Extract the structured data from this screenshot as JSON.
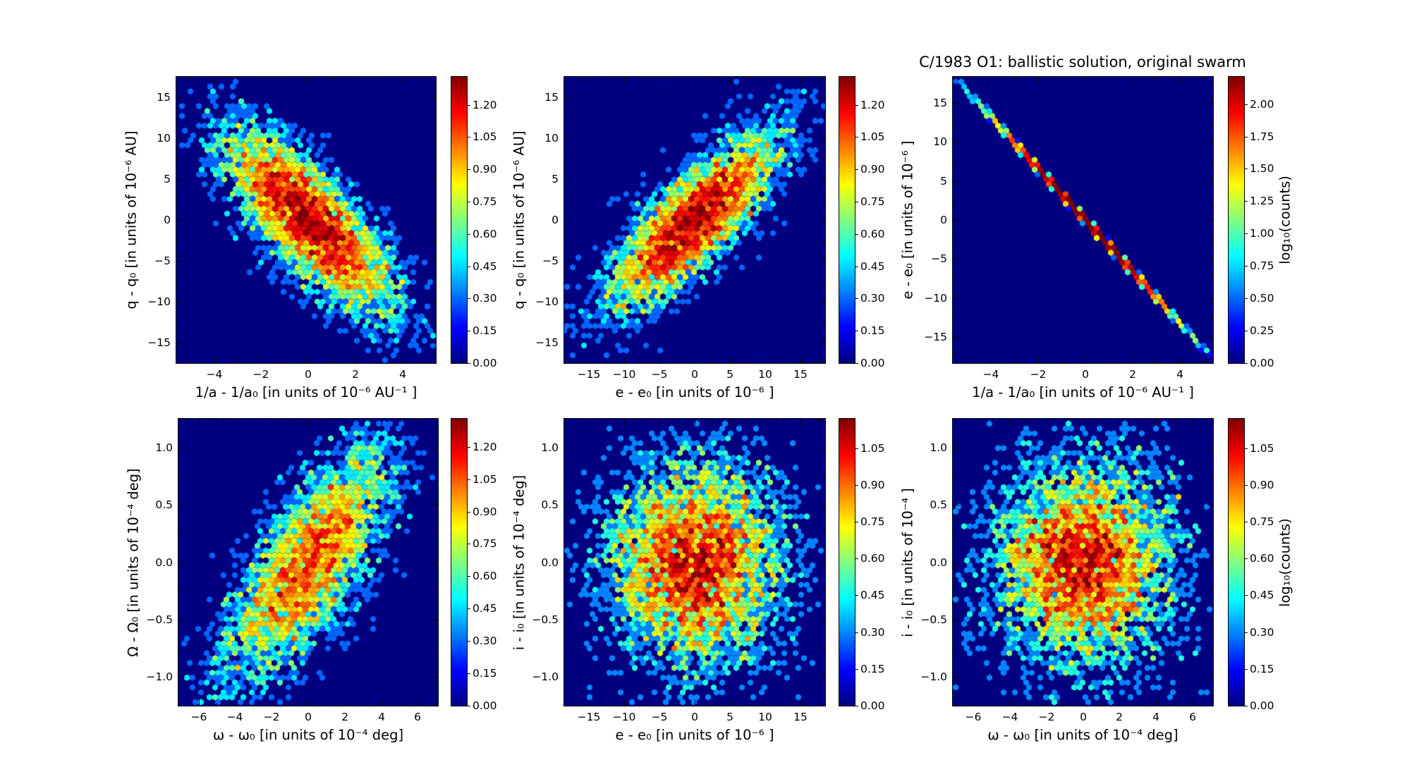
{
  "title": "C/1983 O1:  ballistic solution, original swarm",
  "colorbar_label": "log₁₀(counts)",
  "colors": {
    "figure_background": "#ffffff",
    "plot_background": "#000080",
    "axis_color": "#000000",
    "colormap": "jet"
  },
  "chart_data": [
    {
      "name": "q-vs-inverse-a",
      "type": "hexbin",
      "xlabel": "1/a - 1/a₀ [in units of 10⁻⁶ AU⁻¹ ]",
      "ylabel": "q - q₀ [in units of 10⁻⁶ AU]",
      "xlim": [
        -5.6,
        5.4
      ],
      "ylim": [
        -17.5,
        17.5
      ],
      "xticks": [
        [
          -4,
          "−4"
        ],
        [
          -2,
          "−2"
        ],
        [
          0,
          "0"
        ],
        [
          2,
          "2"
        ],
        [
          4,
          "4"
        ]
      ],
      "yticks": [
        [
          15,
          "15"
        ],
        [
          10,
          "10"
        ],
        [
          5,
          "5"
        ],
        [
          0,
          "0"
        ],
        [
          -5,
          "−5"
        ],
        [
          -10,
          "−10"
        ],
        [
          -15,
          "−15"
        ]
      ],
      "colorbar_ticks": [
        [
          1.2,
          "1.20"
        ],
        [
          1.05,
          "1.05"
        ],
        [
          0.9,
          "0.90"
        ],
        [
          0.75,
          "0.75"
        ],
        [
          0.6,
          "0.60"
        ],
        [
          0.45,
          "0.45"
        ],
        [
          0.3,
          "0.30"
        ],
        [
          0.15,
          "0.15"
        ],
        [
          0.0,
          "0.00"
        ]
      ],
      "vmax": 1.33,
      "colormap": "jet",
      "distribution": {
        "n": 5000,
        "sigma_x": 1.8,
        "slope": -2.4,
        "sigma_y": 3.6,
        "seed": 42,
        "cell": 8,
        "correlation": "negative"
      }
    },
    {
      "name": "q-vs-e",
      "type": "hexbin",
      "xlabel": "e - e₀ [in units of 10⁻⁶ ]",
      "ylabel": "q - q₀ [in units of 10⁻⁶ AU]",
      "xlim": [
        -18.5,
        18.5
      ],
      "ylim": [
        -17.5,
        17.5
      ],
      "xticks": [
        [
          -15,
          "−15"
        ],
        [
          -10,
          "−10"
        ],
        [
          -5,
          "−5"
        ],
        [
          0,
          "0"
        ],
        [
          5,
          "5"
        ],
        [
          10,
          "10"
        ],
        [
          15,
          "15"
        ]
      ],
      "yticks": [
        [
          15,
          "15"
        ],
        [
          10,
          "10"
        ],
        [
          5,
          "5"
        ],
        [
          0,
          "0"
        ],
        [
          -5,
          "−5"
        ],
        [
          -10,
          "−10"
        ],
        [
          -15,
          "−15"
        ]
      ],
      "colorbar_ticks": [
        [
          1.2,
          "1.20"
        ],
        [
          1.05,
          "1.05"
        ],
        [
          0.9,
          "0.90"
        ],
        [
          0.75,
          "0.75"
        ],
        [
          0.6,
          "0.60"
        ],
        [
          0.45,
          "0.45"
        ],
        [
          0.3,
          "0.30"
        ],
        [
          0.15,
          "0.15"
        ],
        [
          0.0,
          "0.00"
        ]
      ],
      "vmax": 1.33,
      "colormap": "jet",
      "distribution": {
        "n": 4500,
        "sigma_x": 6.0,
        "slope": 0.7,
        "sigma_y": 3.2,
        "seed": 7,
        "cell": 8,
        "correlation": "positive"
      }
    },
    {
      "name": "e-vs-inverse-a",
      "type": "hexbin",
      "xlabel": "1/a - 1/a₀ [in units of 10⁻⁶ AU⁻¹ ]",
      "ylabel": "e - e₀ [in units of 10⁻⁶ ]",
      "xlim": [
        -5.6,
        5.4
      ],
      "ylim": [
        -18.3,
        18.3
      ],
      "xticks": [
        [
          -4,
          "−4"
        ],
        [
          -2,
          "−2"
        ],
        [
          0,
          "0"
        ],
        [
          2,
          "2"
        ],
        [
          4,
          "4"
        ]
      ],
      "yticks": [
        [
          15,
          "15"
        ],
        [
          10,
          "10"
        ],
        [
          5,
          "5"
        ],
        [
          0,
          "0"
        ],
        [
          -5,
          "−5"
        ],
        [
          -10,
          "−10"
        ],
        [
          -15,
          "−15"
        ]
      ],
      "colorbar_ticks": [
        [
          2.0,
          "2.00"
        ],
        [
          1.75,
          "1.75"
        ],
        [
          1.5,
          "1.50"
        ],
        [
          1.25,
          "1.25"
        ],
        [
          1.0,
          "1.00"
        ],
        [
          0.75,
          "0.75"
        ],
        [
          0.5,
          "0.50"
        ],
        [
          0.25,
          "0.25"
        ],
        [
          0.0,
          "0.00"
        ]
      ],
      "vmax": 2.21,
      "colormap": "jet",
      "distribution": {
        "n": 7000,
        "sigma_x": 1.75,
        "slope": -3.3,
        "sigma_y": 0.1,
        "seed": 13,
        "cell": 8,
        "correlation": "tight negative line"
      }
    },
    {
      "name": "node-vs-argperi",
      "type": "hexbin",
      "xlabel": "ω - ω₀ [in units of 10⁻⁴ deg]",
      "ylabel": "Ω - Ω₀ [in units of 10⁻⁴ deg]",
      "xlim": [
        -7.1,
        7.1
      ],
      "ylim": [
        -1.25,
        1.25
      ],
      "xticks": [
        [
          -6,
          "−6"
        ],
        [
          -4,
          "−4"
        ],
        [
          -2,
          "−2"
        ],
        [
          0,
          "0"
        ],
        [
          2,
          "2"
        ],
        [
          4,
          "4"
        ],
        [
          6,
          "6"
        ]
      ],
      "yticks": [
        [
          1.0,
          "1.0"
        ],
        [
          0.5,
          "0.5"
        ],
        [
          0.0,
          "0.0"
        ],
        [
          -0.5,
          "−0.5"
        ],
        [
          -1.0,
          "−1.0"
        ]
      ],
      "colorbar_ticks": [
        [
          1.2,
          "1.20"
        ],
        [
          1.05,
          "1.05"
        ],
        [
          0.9,
          "0.90"
        ],
        [
          0.75,
          "0.75"
        ],
        [
          0.6,
          "0.60"
        ],
        [
          0.45,
          "0.45"
        ],
        [
          0.3,
          "0.30"
        ],
        [
          0.15,
          "0.15"
        ],
        [
          0.0,
          "0.00"
        ]
      ],
      "vmax": 1.33,
      "colormap": "jet",
      "distribution": {
        "n": 4200,
        "sigma_x": 2.3,
        "slope": 0.17,
        "sigma_y": 0.35,
        "seed": 99,
        "cell": 8,
        "correlation": "positive"
      }
    },
    {
      "name": "incl-vs-e",
      "type": "hexbin",
      "xlabel": "e - e₀ [in units of 10⁻⁶ ]",
      "ylabel": "i - i₀ [in units of 10⁻⁴ deg]",
      "xlim": [
        -18.5,
        18.5
      ],
      "ylim": [
        -1.25,
        1.25
      ],
      "xticks": [
        [
          -15,
          "−15"
        ],
        [
          -10,
          "−10"
        ],
        [
          -5,
          "−5"
        ],
        [
          0,
          "0"
        ],
        [
          5,
          "5"
        ],
        [
          10,
          "10"
        ],
        [
          15,
          "15"
        ]
      ],
      "yticks": [
        [
          1.0,
          "1.0"
        ],
        [
          0.5,
          "0.5"
        ],
        [
          0.0,
          "0.0"
        ],
        [
          -0.5,
          "−0.5"
        ],
        [
          -1.0,
          "−1.0"
        ]
      ],
      "colorbar_ticks": [
        [
          1.05,
          "1.05"
        ],
        [
          0.9,
          "0.90"
        ],
        [
          0.75,
          "0.75"
        ],
        [
          0.6,
          "0.60"
        ],
        [
          0.45,
          "0.45"
        ],
        [
          0.3,
          "0.30"
        ],
        [
          0.15,
          "0.15"
        ],
        [
          0.0,
          "0.00"
        ]
      ],
      "vmax": 1.17,
      "colormap": "jet",
      "distribution": {
        "n": 5000,
        "sigma_x": 6.2,
        "slope": 0,
        "sigma_y": 0.45,
        "seed": 55,
        "cell": 8,
        "correlation": "none"
      }
    },
    {
      "name": "incl-vs-argperi",
      "type": "hexbin",
      "xlabel": "ω - ω₀ [in units of 10⁻⁴ deg]",
      "ylabel": "i - i₀ [in units of 10⁻⁴ ]",
      "xlim": [
        -7.1,
        7.1
      ],
      "ylim": [
        -1.25,
        1.25
      ],
      "xticks": [
        [
          -6,
          "−6"
        ],
        [
          -4,
          "−4"
        ],
        [
          -2,
          "−2"
        ],
        [
          0,
          "0"
        ],
        [
          2,
          "2"
        ],
        [
          4,
          "4"
        ],
        [
          6,
          "6"
        ]
      ],
      "yticks": [
        [
          1.0,
          "1.0"
        ],
        [
          0.5,
          "0.5"
        ],
        [
          0.0,
          "0.0"
        ],
        [
          -0.5,
          "−0.5"
        ],
        [
          -1.0,
          "−1.0"
        ]
      ],
      "colorbar_ticks": [
        [
          1.05,
          "1.05"
        ],
        [
          0.9,
          "0.90"
        ],
        [
          0.75,
          "0.75"
        ],
        [
          0.6,
          "0.60"
        ],
        [
          0.45,
          "0.45"
        ],
        [
          0.3,
          "0.30"
        ],
        [
          0.15,
          "0.15"
        ],
        [
          0.0,
          "0.00"
        ]
      ],
      "vmax": 1.17,
      "colormap": "jet",
      "distribution": {
        "n": 5000,
        "sigma_x": 2.5,
        "slope": 0,
        "sigma_y": 0.45,
        "seed": 77,
        "cell": 8,
        "correlation": "none"
      }
    }
  ]
}
